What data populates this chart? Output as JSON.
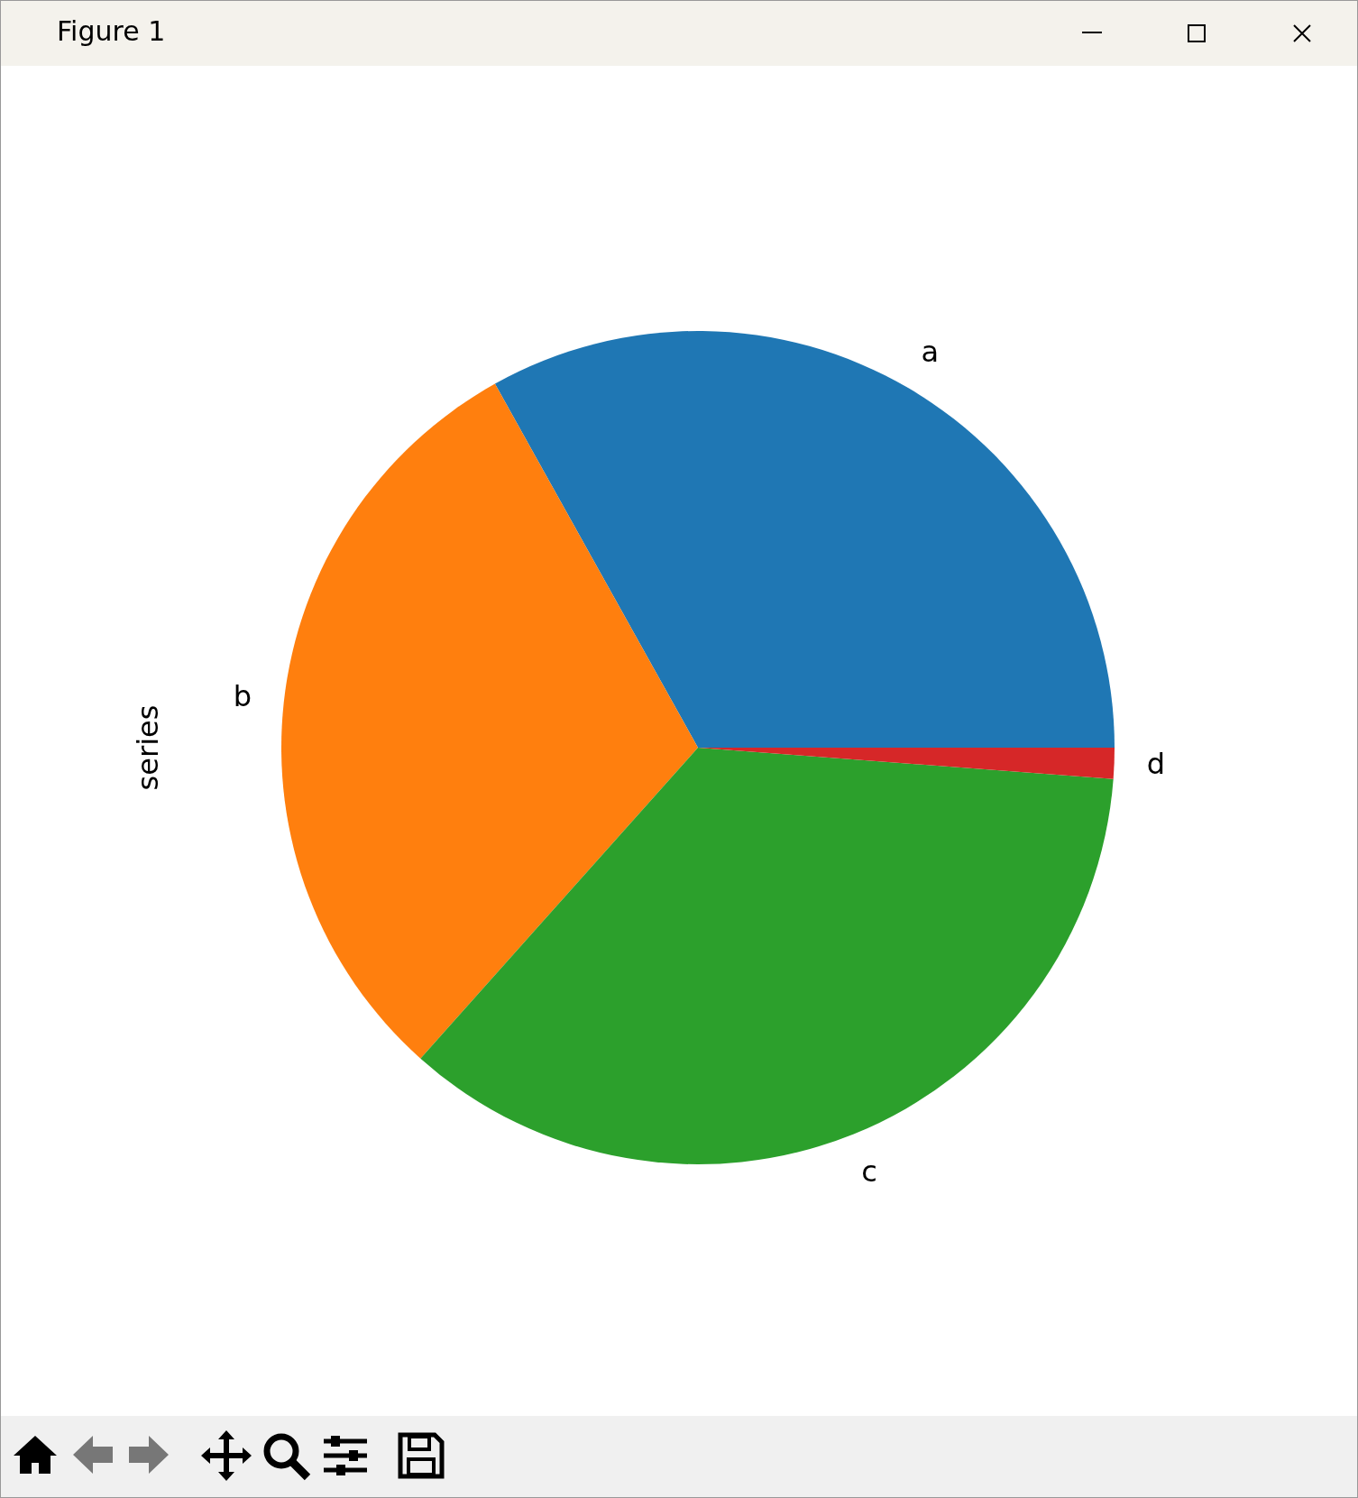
{
  "chart_data": {
    "type": "pie",
    "title": "Figure 1",
    "ylabel": "series",
    "categories": [
      "a",
      "b",
      "c",
      "d"
    ],
    "values": [
      33.1,
      30.3,
      35.4,
      1.2
    ],
    "colors": [
      "#1f77b4",
      "#ff7f0e",
      "#2ca02c",
      "#d62728"
    ]
  }
}
